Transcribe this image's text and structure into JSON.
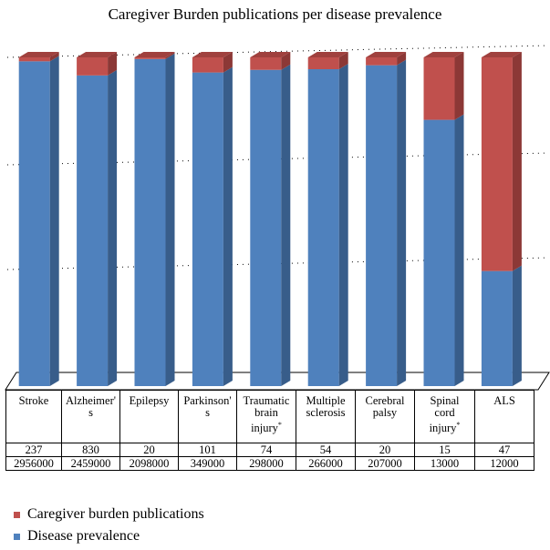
{
  "chart_data": {
    "type": "bar",
    "stacked": "percent",
    "title": "Caregiver Burden publications per disease prevalence",
    "categories": [
      {
        "line1": "Stroke",
        "line2": "",
        "line3": "",
        "sup": ""
      },
      {
        "line1": "Alzheimer'",
        "line2": "s",
        "line3": "",
        "sup": ""
      },
      {
        "line1": "Epilepsy",
        "line2": "",
        "line3": "",
        "sup": ""
      },
      {
        "line1": "Parkinson'",
        "line2": "s",
        "line3": "",
        "sup": ""
      },
      {
        "line1": "Traumatic",
        "line2": "brain",
        "line3": "injury",
        "sup": "*"
      },
      {
        "line1": "Multiple",
        "line2": "sclerosis",
        "line3": "",
        "sup": ""
      },
      {
        "line1": "Cerebral",
        "line2": "palsy",
        "line3": "",
        "sup": ""
      },
      {
        "line1": "Spinal",
        "line2": "cord",
        "line3": "injury",
        "sup": "*"
      },
      {
        "line1": "ALS",
        "line2": "",
        "line3": "",
        "sup": ""
      }
    ],
    "series": [
      {
        "name": "Caregiver burden publications",
        "color": "#c0504d",
        "values": [
          237,
          830,
          20,
          101,
          74,
          54,
          20,
          15,
          47
        ]
      },
      {
        "name": "Disease prevalence",
        "color": "#4f81bd",
        "values": [
          2956000,
          2459000,
          2098000,
          349000,
          298000,
          266000,
          207000,
          13000,
          12000
        ]
      }
    ],
    "display_share": {
      "publications": [
        0.012,
        0.055,
        0.005,
        0.046,
        0.038,
        0.036,
        0.024,
        0.19,
        0.65
      ],
      "prevalence": [
        0.988,
        0.945,
        0.995,
        0.954,
        0.962,
        0.964,
        0.976,
        0.81,
        0.35
      ]
    },
    "grid": true,
    "legend": "bottom-left",
    "data_table": true
  },
  "legend": {
    "publications_label": "Caregiver burden publications",
    "prevalence_label": "Disease prevalence"
  }
}
